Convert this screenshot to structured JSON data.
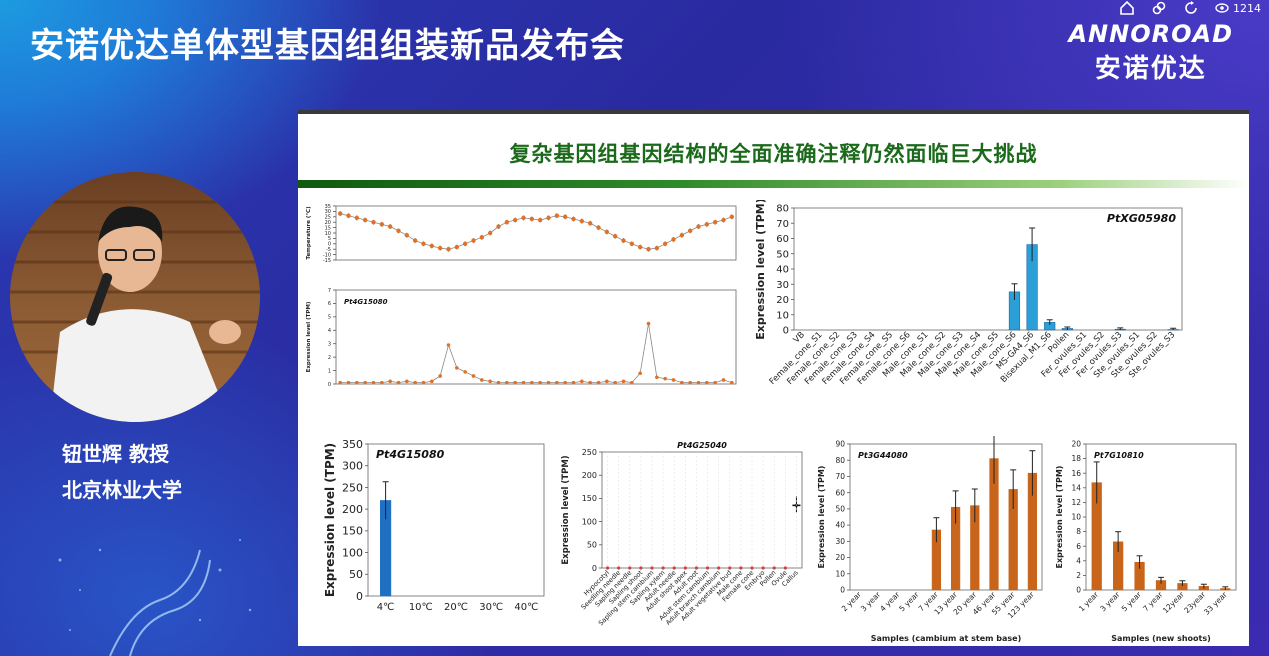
{
  "event": {
    "title": "安诺优达单体型基因组组装新品发布会",
    "viewer_count": "1214",
    "logo_en": "ANNOROAD",
    "logo_cn": "安诺优达"
  },
  "speaker": {
    "name": "钮世辉 教授",
    "affiliation": "北京林业大学"
  },
  "slide": {
    "title": "复杂基因组基因结构的全面准确注释仍然面临巨大挑战"
  },
  "chart_data": [
    {
      "type": "line",
      "ylabel": "Temperature (℃)",
      "ylim": [
        -15,
        35
      ],
      "yticks": [
        -15,
        -10,
        -5,
        0,
        5,
        10,
        15,
        20,
        25,
        30,
        35
      ],
      "values": [
        28,
        26,
        24,
        22,
        20,
        18,
        16,
        12,
        8,
        3,
        0,
        -2,
        -4,
        -5,
        -3,
        0,
        3,
        6,
        10,
        16,
        20,
        22,
        24,
        23,
        22,
        24,
        26,
        25,
        23,
        21,
        19,
        15,
        11,
        7,
        3,
        0,
        -3,
        -5,
        -4,
        0,
        4,
        8,
        12,
        16,
        18,
        20,
        22,
        25
      ]
    },
    {
      "type": "line",
      "title": "Pt4G15080",
      "ylabel": "Expression level (TPM)",
      "ylim": [
        0,
        7
      ],
      "yticks": [
        0,
        1,
        2,
        3,
        4,
        5,
        6,
        7
      ],
      "values": [
        0.1,
        0.1,
        0.1,
        0.1,
        0.1,
        0.1,
        0.2,
        0.1,
        0.2,
        0.1,
        0.1,
        0.2,
        0.6,
        2.9,
        1.2,
        0.9,
        0.6,
        0.3,
        0.2,
        0.1,
        0.1,
        0.1,
        0.1,
        0.1,
        0.1,
        0.1,
        0.1,
        0.1,
        0.1,
        0.2,
        0.1,
        0.1,
        0.2,
        0.1,
        0.2,
        0.1,
        0.8,
        4.5,
        0.5,
        0.4,
        0.3,
        0.1,
        0.1,
        0.1,
        0.1,
        0.1,
        0.3,
        0.1
      ]
    },
    {
      "type": "bar",
      "title": "PtXG05980",
      "ylabel": "Expression level (TPM)",
      "ylim": [
        0,
        80
      ],
      "yticks": [
        0,
        10,
        20,
        30,
        40,
        50,
        60,
        70,
        80
      ],
      "categories": [
        "VB",
        "Female_cone_S1",
        "Female_cone_S2",
        "Female_cone_S3",
        "Female_cone_S4",
        "Female_cone_S5",
        "Female_cone_S6",
        "Male_cone_S1",
        "Male_cone_S2",
        "Male_cone_S3",
        "Male_cone_S4",
        "Male_cone_S5",
        "Male_cone_S6",
        "MS-GA4_S6",
        "Bisexual_M1_S6",
        "Pollen",
        "Fer_ovules_S1",
        "Fer_ovules_S2",
        "Fer_ovules_S3",
        "Ste_ovules_S1",
        "Ste_ovules_S2",
        "Ste_ovules_S3"
      ],
      "values": [
        0,
        0,
        0,
        0,
        0,
        0,
        0,
        0,
        0,
        0,
        0,
        0,
        25,
        56,
        5,
        1,
        0,
        0,
        0.5,
        0,
        0,
        0.3
      ]
    },
    {
      "type": "bar",
      "title": "Pt4G15080",
      "ylabel": "Expression level (TPM)",
      "ylim": [
        0,
        350
      ],
      "yticks": [
        0,
        50,
        100,
        150,
        200,
        250,
        300,
        350
      ],
      "categories": [
        "4℃",
        "10℃",
        "20℃",
        "30℃",
        "40℃"
      ],
      "values": [
        220,
        0,
        0,
        0,
        0
      ]
    },
    {
      "type": "scatter",
      "title": "Pt4G25040",
      "ylabel": "Expression level (TPM)",
      "ylim": [
        0,
        250
      ],
      "yticks": [
        0,
        50,
        100,
        150,
        200,
        250
      ],
      "categories": [
        "Hypocotyl",
        "Seedling needle",
        "Sapling needle",
        "Sapling shoot",
        "Sapling stem cambium",
        "Sapling xylem",
        "Adult needle",
        "Adult shoot apex",
        "Adult root",
        "Adult stem cambium",
        "Adult branch cambium",
        "Adult vegetative bud",
        "Male cone",
        "Female cone",
        "Embryo",
        "Pollen",
        "Ovule",
        "Callus"
      ],
      "values": [
        0,
        0,
        0,
        0,
        0,
        0,
        0,
        0,
        0,
        0,
        0,
        0,
        0,
        0,
        0,
        0,
        0,
        135
      ]
    },
    {
      "type": "bar",
      "title": "Pt3G44080",
      "xlabel": "Samples (cambium at stem base)",
      "ylabel": "Expression level (TPM)",
      "ylim": [
        0,
        90
      ],
      "yticks": [
        0,
        10,
        20,
        30,
        40,
        50,
        60,
        70,
        80,
        90
      ],
      "categories": [
        "2 year",
        "3 year",
        "4 year",
        "5 year",
        "7 year",
        "13 year",
        "20 year",
        "46 year",
        "55 year",
        "123 year"
      ],
      "values": [
        0,
        0,
        0,
        0,
        37,
        51,
        52,
        81,
        62,
        72
      ]
    },
    {
      "type": "bar",
      "title": "Pt7G10810",
      "xlabel": "Samples (new shoots)",
      "ylabel": "Expression level (TPM)",
      "ylim": [
        0,
        20
      ],
      "yticks": [
        0,
        2,
        4,
        6,
        8,
        10,
        12,
        14,
        16,
        18,
        20
      ],
      "categories": [
        "1 year",
        "3 year",
        "5 year",
        "7 year",
        "12year",
        "23year",
        "33 year"
      ],
      "values": [
        14.7,
        6.6,
        3.8,
        1.3,
        0.9,
        0.5,
        0.2
      ]
    }
  ],
  "colors": {
    "title_green": "#1b6a1b",
    "bar_blue": "#2a9fd8",
    "bar_blue_dark": "#1f6fc2",
    "bar_orange": "#c8651b",
    "point_orange": "#e0712a"
  }
}
